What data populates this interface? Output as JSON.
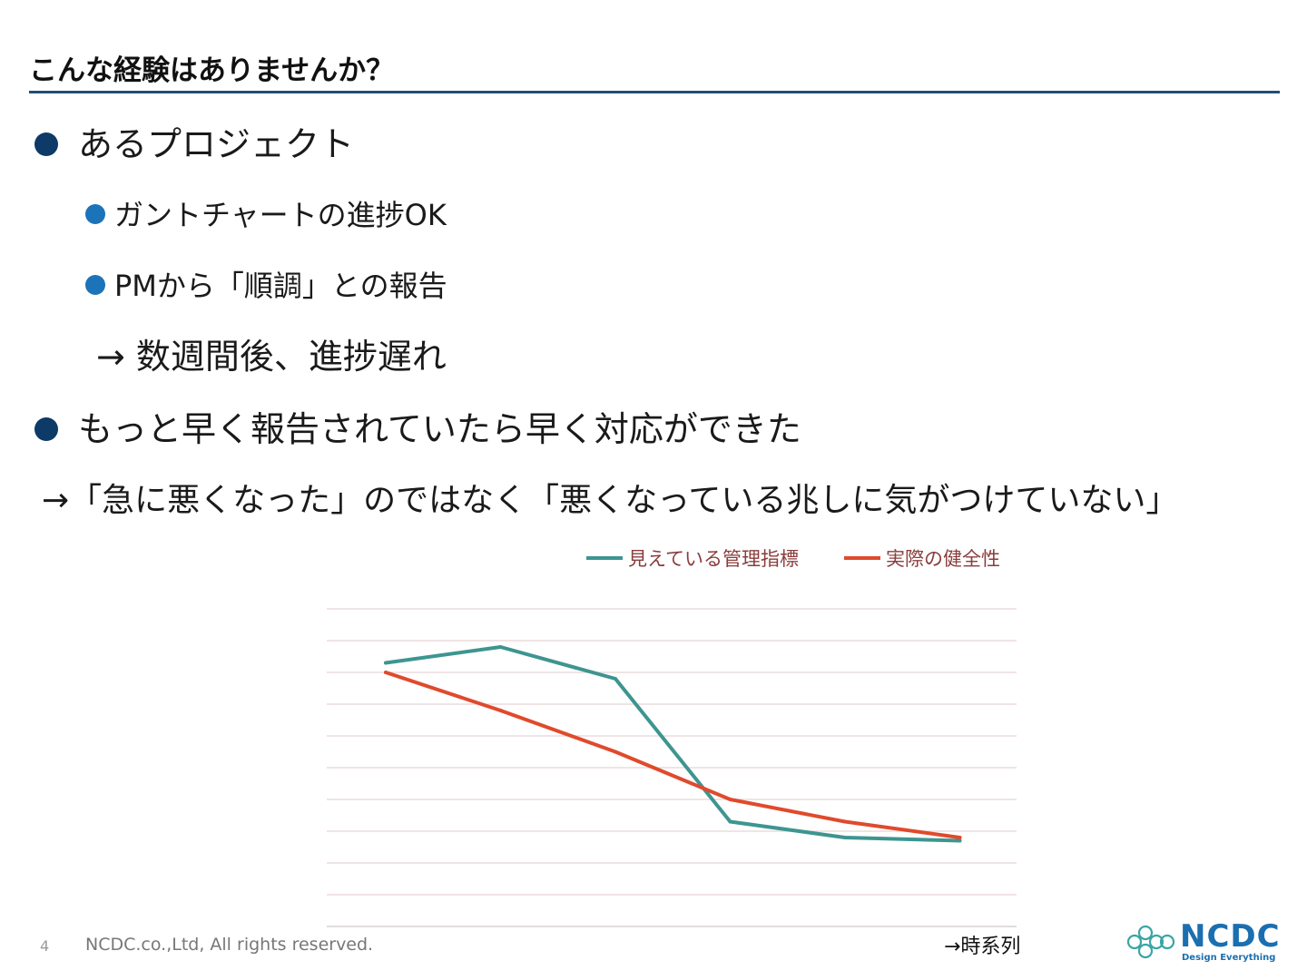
{
  "slide": {
    "title": "こんな経験はありませんか？",
    "bullets": {
      "b1": "あるプロジェクト",
      "b1a": "ガントチャートの進捗OK",
      "b1b": "PMから「順調」との報告",
      "b1c": "→ 数週間後、進捗遅れ",
      "b2": "もっと早く報告されていたら早く対応ができた",
      "b3": "→「急に悪くなった」のではなく「悪くなっている兆しに気がつけていない」"
    }
  },
  "footer": {
    "page_number": "4",
    "copyright": "NCDC.co.,Ltd, All rights reserved."
  },
  "logo": {
    "name": "NCDC",
    "tagline": "Design Everything",
    "color": "#1b6fb0"
  },
  "chart_data": {
    "type": "line",
    "x": [
      1,
      2,
      3,
      4,
      5,
      6
    ],
    "xlabel": "→時系列",
    "ylabel": "",
    "ylim": [
      0,
      10
    ],
    "grid": true,
    "legend": "top",
    "series": [
      {
        "name": "見えている管理指標",
        "color": "#3d9590",
        "values": [
          8.3,
          8.8,
          7.8,
          3.3,
          2.8,
          2.7
        ]
      },
      {
        "name": "実際の健全性",
        "color": "#e04a2c",
        "values": [
          8.0,
          6.8,
          5.5,
          4.0,
          3.3,
          2.8
        ]
      }
    ]
  }
}
